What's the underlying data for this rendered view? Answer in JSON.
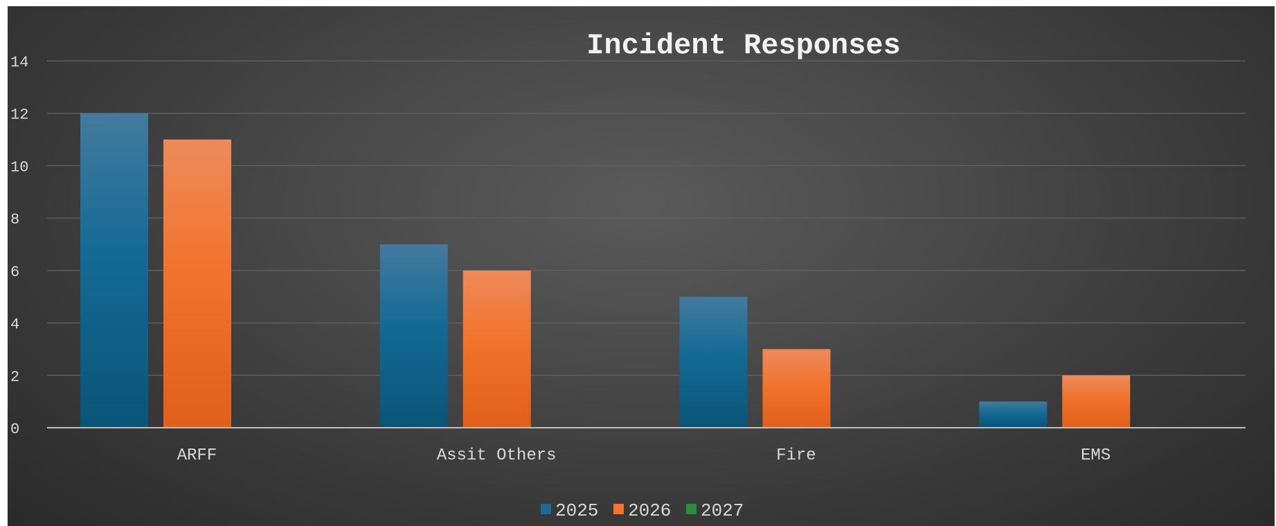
{
  "chart_data": {
    "type": "bar",
    "title": "Incident Responses",
    "xlabel": "",
    "ylabel": "",
    "categories": [
      "ARFF",
      "Assit Others",
      "Fire",
      "EMS"
    ],
    "series": [
      {
        "name": "2025",
        "values": [
          12,
          7,
          5,
          1
        ],
        "color": "#1f6a94"
      },
      {
        "name": "2026",
        "values": [
          11,
          6,
          3,
          2
        ],
        "color": "#f0762f"
      },
      {
        "name": "2027",
        "values": [
          0,
          0,
          0,
          0
        ],
        "color": "#2e8b3c"
      }
    ],
    "ylim": [
      0,
      14
    ],
    "yticks": [
      0,
      2,
      4,
      6,
      8,
      10,
      12,
      14
    ],
    "grid": true,
    "legend_position": "bottom-center"
  }
}
